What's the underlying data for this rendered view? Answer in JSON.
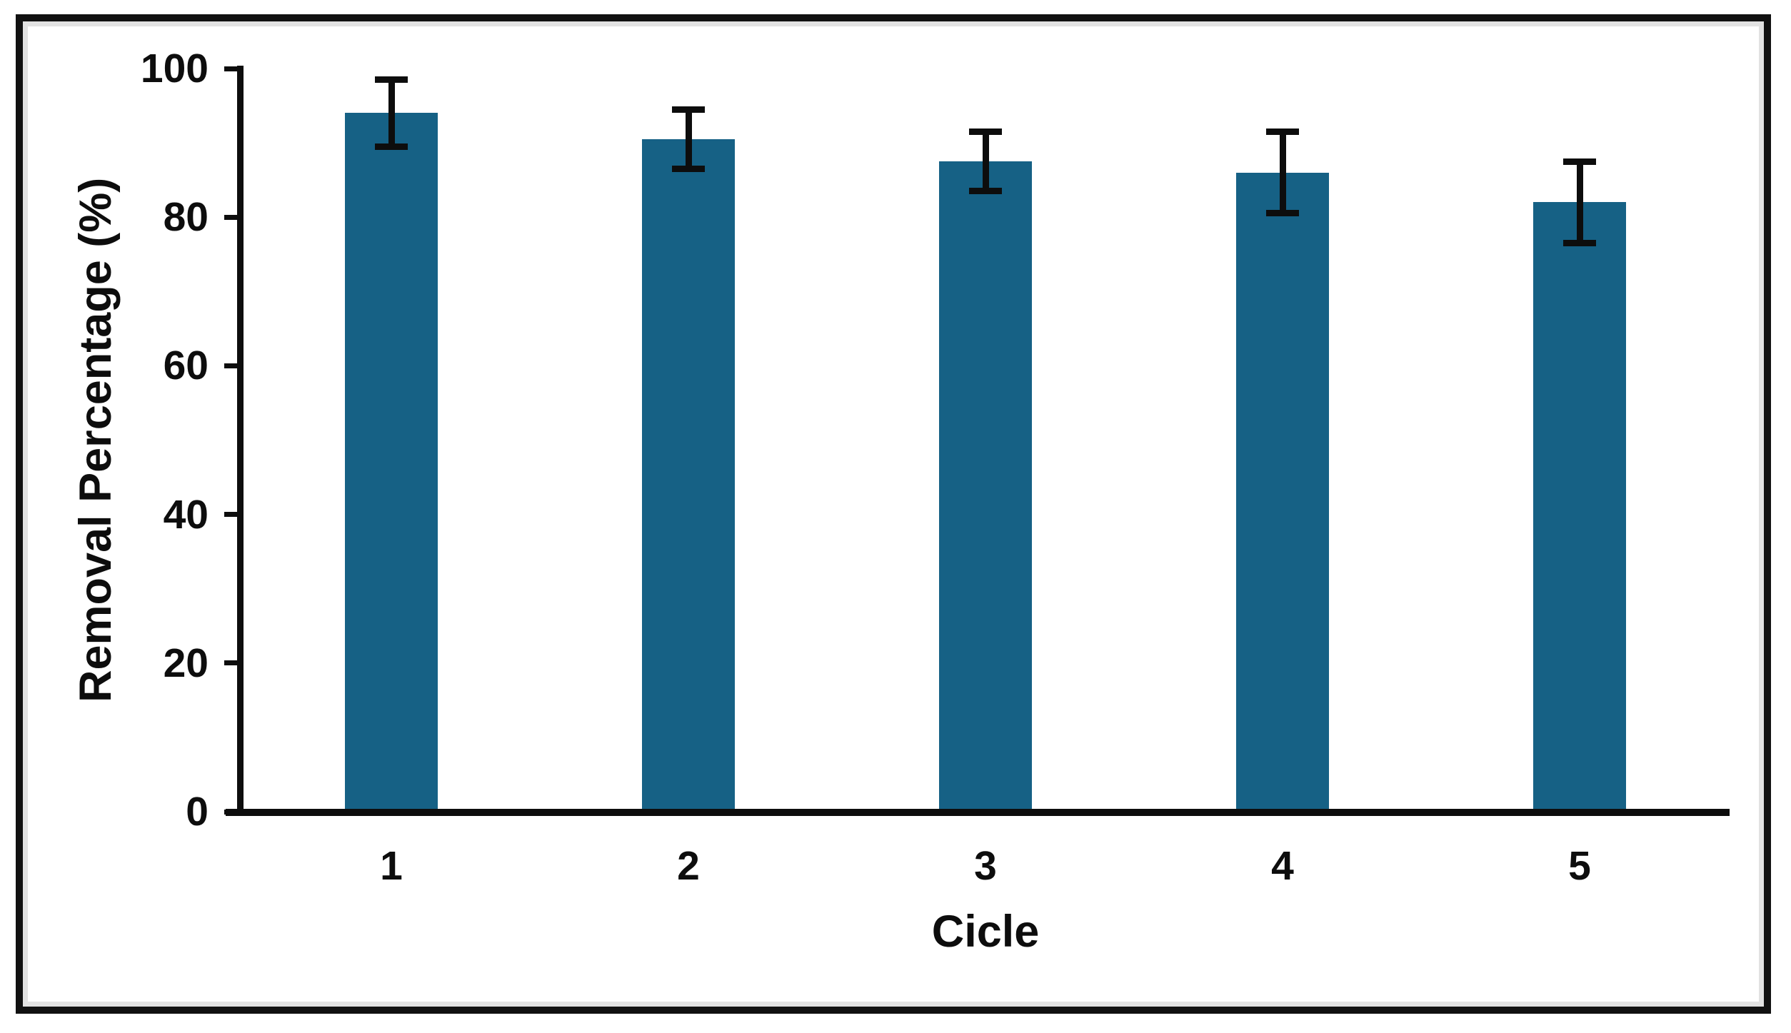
{
  "figure": {
    "background": "#ffffff",
    "border_color": "#111111",
    "inner_edge_color": "#e2e2e2"
  },
  "chart_data": {
    "type": "bar",
    "title": "",
    "xlabel": "Cicle",
    "ylabel": "Removal Percentage (%)",
    "categories": [
      "1",
      "2",
      "3",
      "4",
      "5"
    ],
    "values": [
      94,
      90.5,
      87.5,
      86,
      82
    ],
    "error_bars": [
      4.5,
      4,
      4,
      5.5,
      5.5
    ],
    "ylim": [
      0,
      100
    ],
    "yticks": [
      0,
      20,
      40,
      60,
      80,
      100
    ],
    "bar_color": "#166185",
    "error_bar_color": "#0d0d0d",
    "axis_color": "#0d0d0d",
    "grid": false,
    "legend_position": "none"
  }
}
